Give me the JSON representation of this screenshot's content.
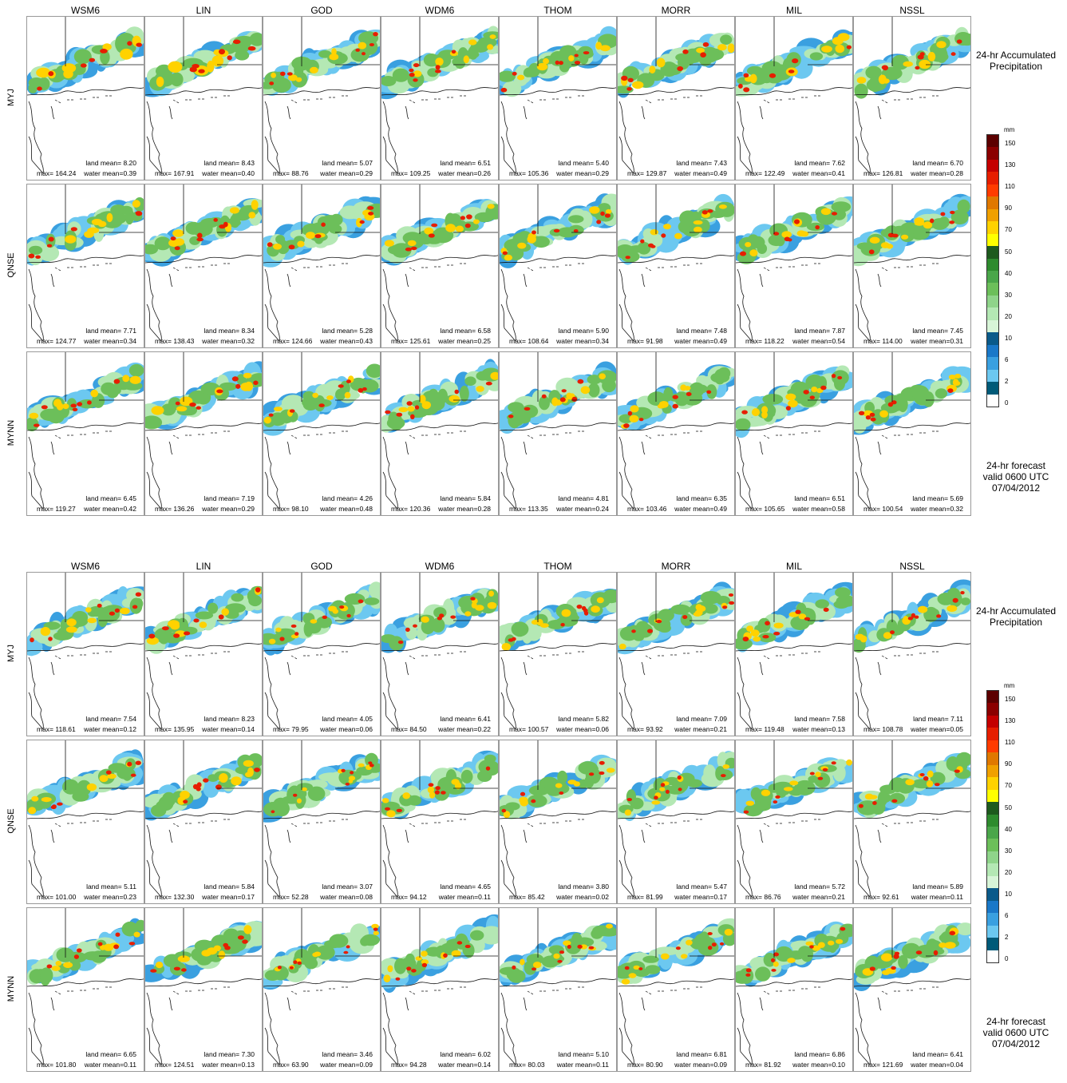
{
  "columns": [
    "WSM6",
    "LIN",
    "GOD",
    "WDM6",
    "THOM",
    "MORR",
    "MIL",
    "NSSL"
  ],
  "rows": [
    "MYJ",
    "QNSE",
    "MYNN"
  ],
  "side_title_line1": "24-hr Accumulated",
  "side_title_line2": "Precipitation",
  "forecast_line1": "24-hr forecast",
  "forecast_line2": "valid 0600 UTC",
  "forecast_line3": "07/04/2012",
  "legend": {
    "unit": "mm",
    "ticks": [
      "150",
      "130",
      "110",
      "90",
      "70",
      "50",
      "40",
      "30",
      "20",
      "10",
      "6",
      "2",
      "0"
    ],
    "colors": [
      "#5c0000",
      "#8b0000",
      "#c40000",
      "#e61e00",
      "#ff3c00",
      "#e07800",
      "#f0a000",
      "#ffd200",
      "#ffff00",
      "#1e5a1e",
      "#2e8b2e",
      "#4aa64a",
      "#6cbf5a",
      "#8fd48a",
      "#b4e8b4",
      "#d8f5d8",
      "#0a5a8a",
      "#1a78c8",
      "#3aa0e0",
      "#6cc8f0",
      "#005a78",
      "#ffffff"
    ]
  },
  "blocks": [
    {
      "stats": [
        [
          {
            "land": "8.20",
            "max": "164.24",
            "water": "0.39"
          },
          {
            "land": "8.43",
            "max": "167.91",
            "water": "0.40"
          },
          {
            "land": "5.07",
            "max": "88.76",
            "water": "0.29"
          },
          {
            "land": "6.51",
            "max": "109.25",
            "water": "0.26"
          },
          {
            "land": "5.40",
            "max": "105.36",
            "water": "0.29"
          },
          {
            "land": "7.43",
            "max": "129.87",
            "water": "0.49"
          },
          {
            "land": "7.62",
            "max": "122.49",
            "water": "0.41"
          },
          {
            "land": "6.70",
            "max": "126.81",
            "water": "0.28"
          }
        ],
        [
          {
            "land": "7.71",
            "max": "124.77",
            "water": "0.34"
          },
          {
            "land": "8.34",
            "max": "138.43",
            "water": "0.32"
          },
          {
            "land": "5.28",
            "max": "124.66",
            "water": "0.43"
          },
          {
            "land": "6.58",
            "max": "125.61",
            "water": "0.25"
          },
          {
            "land": "5.90",
            "max": "108.64",
            "water": "0.34"
          },
          {
            "land": "7.48",
            "max": "91.98",
            "water": "0.49"
          },
          {
            "land": "7.87",
            "max": "118.22",
            "water": "0.54"
          },
          {
            "land": "7.45",
            "max": "114.00",
            "water": "0.31"
          }
        ],
        [
          {
            "land": "6.45",
            "max": "119.27",
            "water": "0.42"
          },
          {
            "land": "7.19",
            "max": "136.26",
            "water": "0.29"
          },
          {
            "land": "4.26",
            "max": "98.10",
            "water": "0.48"
          },
          {
            "land": "5.84",
            "max": "120.36",
            "water": "0.28"
          },
          {
            "land": "4.81",
            "max": "113.35",
            "water": "0.24"
          },
          {
            "land": "6.35",
            "max": "103.46",
            "water": "0.49"
          },
          {
            "land": "6.51",
            "max": "105.65",
            "water": "0.58"
          },
          {
            "land": "5.69",
            "max": "100.54",
            "water": "0.32"
          }
        ]
      ]
    },
    {
      "stats": [
        [
          {
            "land": "7.54",
            "max": "118.61",
            "water": "0.12"
          },
          {
            "land": "8.23",
            "max": "135.95",
            "water": "0.14"
          },
          {
            "land": "4.05",
            "max": "79.95",
            "water": "0.06"
          },
          {
            "land": "6.41",
            "max": "84.50",
            "water": "0.22"
          },
          {
            "land": "5.82",
            "max": "100.57",
            "water": "0.06"
          },
          {
            "land": "7.09",
            "max": "93.92",
            "water": "0.21"
          },
          {
            "land": "7.58",
            "max": "119.48",
            "water": "0.13"
          },
          {
            "land": "7.11",
            "max": "108.78",
            "water": "0.05"
          }
        ],
        [
          {
            "land": "5.11",
            "max": "101.00",
            "water": "0.23"
          },
          {
            "land": "5.84",
            "max": "132.30",
            "water": "0.17"
          },
          {
            "land": "3.07",
            "max": "52.28",
            "water": "0.08"
          },
          {
            "land": "4.65",
            "max": "94.12",
            "water": "0.11"
          },
          {
            "land": "3.80",
            "max": "85.42",
            "water": "0.02"
          },
          {
            "land": "5.47",
            "max": "81.99",
            "water": "0.17"
          },
          {
            "land": "5.72",
            "max": "86.76",
            "water": "0.21"
          },
          {
            "land": "5.89",
            "max": "92.61",
            "water": "0.11"
          }
        ],
        [
          {
            "land": "6.65",
            "max": "101.80",
            "water": "0.11"
          },
          {
            "land": "7.30",
            "max": "124.51",
            "water": "0.13"
          },
          {
            "land": "3.46",
            "max": "63.90",
            "water": "0.09"
          },
          {
            "land": "6.02",
            "max": "94.28",
            "water": "0.14"
          },
          {
            "land": "5.10",
            "max": "80.03",
            "water": "0.11"
          },
          {
            "land": "6.81",
            "max": "80.90",
            "water": "0.09"
          },
          {
            "land": "6.86",
            "max": "81.92",
            "water": "0.10"
          },
          {
            "land": "6.41",
            "max": "121.69",
            "water": "0.04"
          }
        ]
      ]
    }
  ]
}
